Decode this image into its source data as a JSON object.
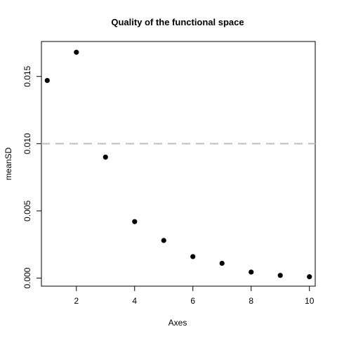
{
  "chart_data": {
    "type": "scatter",
    "title": "Quality of the functional space",
    "xlabel": "Axes",
    "ylabel": "meanSD",
    "xlim": [
      0.8,
      10.2
    ],
    "ylim": [
      -0.0006,
      0.0176
    ],
    "x_ticks": [
      2,
      4,
      6,
      8,
      10
    ],
    "y_ticks": [
      0.0,
      0.005,
      0.01,
      0.015
    ],
    "y_tick_labels": [
      "0.000",
      "0.005",
      "0.010",
      "0.015"
    ],
    "grid": false,
    "reference_line": {
      "y": 0.01,
      "style": "dashed",
      "color": "#bebebe"
    },
    "points": {
      "x": [
        1,
        2,
        3,
        4,
        5,
        6,
        7,
        8,
        9,
        10
      ],
      "y": [
        0.0147,
        0.0168,
        0.009,
        0.0042,
        0.0028,
        0.0016,
        0.0011,
        0.00045,
        0.0002,
        0.0001
      ]
    },
    "colors": {
      "points": "#000000",
      "axes": "#000000"
    }
  }
}
